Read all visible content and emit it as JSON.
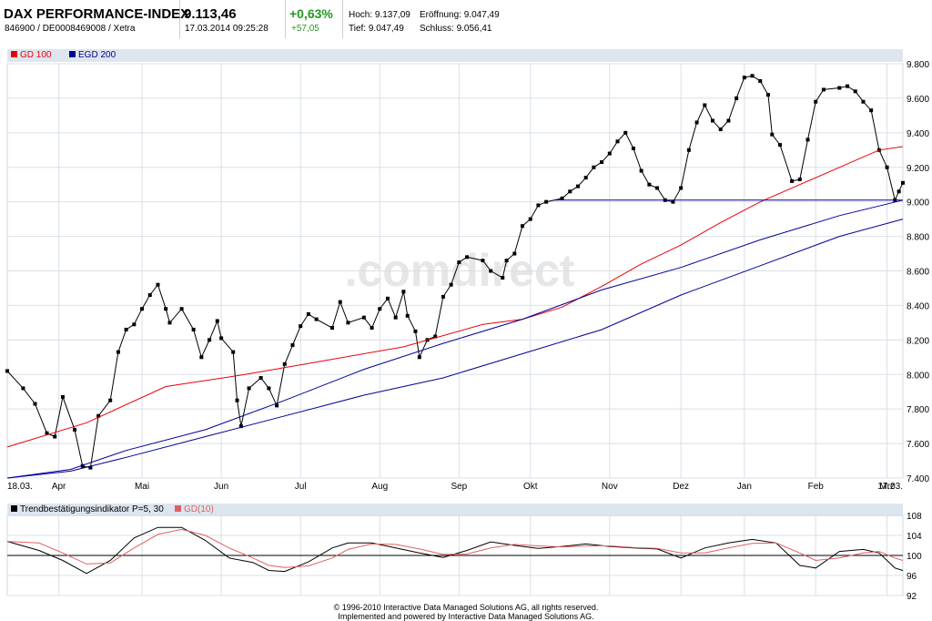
{
  "header": {
    "title": "DAX PERFORMANCE-INDEX",
    "subtitle": "846900 / DE0008469008 / Xetra",
    "price": "9.113,46",
    "datetime": "17.03.2014 09:25:28",
    "change_pct": "+0,63%",
    "change_abs": "+57,05",
    "hoch": "Hoch: 9.137,09",
    "eroeffnung": "Eröffnung: 9.047,49",
    "tief": "Tief: 9.047,49",
    "schluss": "Schluss: 9.056,41"
  },
  "colors": {
    "red": "#e8000b",
    "blue": "#000096",
    "price": "#000000",
    "osc_red": "#e06060"
  },
  "watermark": ".comdirect",
  "chart_data": [
    {
      "type": "line",
      "title": "DAX PERFORMANCE-INDEX",
      "legend": [
        "GD 100",
        "EGD 200"
      ],
      "ylim": [
        7400,
        9800
      ],
      "y_ticks": [
        "9.800",
        "9.600",
        "9.400",
        "9.200",
        "9.000",
        "8.800",
        "8.600",
        "8.400",
        "8.200",
        "8.000",
        "7.800",
        "7.600",
        "7.400"
      ],
      "y_tick_values": [
        9800,
        9600,
        9400,
        9200,
        9000,
        8800,
        8600,
        8400,
        8200,
        8000,
        7800,
        7600,
        7400
      ],
      "x_tick_labels": [
        "18.03.",
        "Apr",
        "Mai",
        "Jun",
        "Jul",
        "Aug",
        "Sep",
        "Okt",
        "Nov",
        "Dez",
        "Jan",
        "Feb",
        "Mrz",
        "17.03."
      ],
      "x_tick_positions": [
        0,
        0.065,
        0.17,
        0.27,
        0.37,
        0.47,
        0.57,
        0.66,
        0.76,
        0.85,
        0.93,
        1.02,
        1.11,
        1.13
      ],
      "x_range": [
        0,
        1.13
      ],
      "series": [
        {
          "name": "DAX",
          "style": "line+square-markers",
          "color": "#000000",
          "points": [
            [
              0.0,
              8020
            ],
            [
              0.02,
              7920
            ],
            [
              0.035,
              7830
            ],
            [
              0.05,
              7660
            ],
            [
              0.06,
              7640
            ],
            [
              0.07,
              7870
            ],
            [
              0.085,
              7680
            ],
            [
              0.095,
              7470
            ],
            [
              0.105,
              7460
            ],
            [
              0.115,
              7760
            ],
            [
              0.13,
              7850
            ],
            [
              0.14,
              8130
            ],
            [
              0.15,
              8260
            ],
            [
              0.16,
              8290
            ],
            [
              0.17,
              8380
            ],
            [
              0.18,
              8460
            ],
            [
              0.19,
              8520
            ],
            [
              0.2,
              8380
            ],
            [
              0.205,
              8300
            ],
            [
              0.22,
              8380
            ],
            [
              0.235,
              8260
            ],
            [
              0.245,
              8100
            ],
            [
              0.255,
              8200
            ],
            [
              0.265,
              8310
            ],
            [
              0.27,
              8210
            ],
            [
              0.285,
              8130
            ],
            [
              0.29,
              7850
            ],
            [
              0.295,
              7700
            ],
            [
              0.305,
              7920
            ],
            [
              0.32,
              7980
            ],
            [
              0.33,
              7920
            ],
            [
              0.34,
              7820
            ],
            [
              0.35,
              8060
            ],
            [
              0.36,
              8170
            ],
            [
              0.37,
              8280
            ],
            [
              0.38,
              8350
            ],
            [
              0.39,
              8320
            ],
            [
              0.41,
              8270
            ],
            [
              0.42,
              8420
            ],
            [
              0.43,
              8300
            ],
            [
              0.45,
              8330
            ],
            [
              0.46,
              8270
            ],
            [
              0.47,
              8380
            ],
            [
              0.48,
              8440
            ],
            [
              0.49,
              8330
            ],
            [
              0.5,
              8480
            ],
            [
              0.505,
              8340
            ],
            [
              0.515,
              8250
            ],
            [
              0.52,
              8100
            ],
            [
              0.53,
              8200
            ],
            [
              0.54,
              8220
            ],
            [
              0.55,
              8450
            ],
            [
              0.56,
              8520
            ],
            [
              0.57,
              8650
            ],
            [
              0.58,
              8680
            ],
            [
              0.6,
              8660
            ],
            [
              0.61,
              8600
            ],
            [
              0.625,
              8560
            ],
            [
              0.63,
              8660
            ],
            [
              0.64,
              8700
            ],
            [
              0.65,
              8860
            ],
            [
              0.66,
              8900
            ],
            [
              0.67,
              8980
            ],
            [
              0.68,
              9000
            ],
            [
              0.7,
              9020
            ],
            [
              0.71,
              9060
            ],
            [
              0.72,
              9090
            ],
            [
              0.73,
              9140
            ],
            [
              0.74,
              9200
            ],
            [
              0.75,
              9230
            ],
            [
              0.76,
              9280
            ],
            [
              0.77,
              9350
            ],
            [
              0.78,
              9400
            ],
            [
              0.79,
              9310
            ],
            [
              0.8,
              9180
            ],
            [
              0.81,
              9100
            ],
            [
              0.82,
              9080
            ],
            [
              0.83,
              9010
            ],
            [
              0.84,
              9000
            ],
            [
              0.85,
              9080
            ],
            [
              0.86,
              9300
            ],
            [
              0.87,
              9460
            ],
            [
              0.88,
              9560
            ],
            [
              0.89,
              9470
            ],
            [
              0.9,
              9420
            ],
            [
              0.91,
              9470
            ],
            [
              0.92,
              9600
            ],
            [
              0.93,
              9720
            ],
            [
              0.94,
              9730
            ],
            [
              0.95,
              9700
            ],
            [
              0.96,
              9620
            ],
            [
              0.965,
              9390
            ],
            [
              0.975,
              9330
            ],
            [
              0.99,
              9120
            ],
            [
              1.0,
              9130
            ],
            [
              1.01,
              9360
            ],
            [
              1.02,
              9580
            ],
            [
              1.03,
              9650
            ],
            [
              1.05,
              9660
            ],
            [
              1.06,
              9670
            ],
            [
              1.07,
              9640
            ],
            [
              1.08,
              9580
            ],
            [
              1.09,
              9530
            ],
            [
              1.1,
              9300
            ],
            [
              1.11,
              9200
            ],
            [
              1.12,
              9010
            ],
            [
              1.125,
              9060
            ],
            [
              1.13,
              9110
            ]
          ]
        },
        {
          "name": "GD 100",
          "color": "#e8000b",
          "points": [
            [
              0,
              7580
            ],
            [
              0.1,
              7720
            ],
            [
              0.2,
              7930
            ],
            [
              0.3,
              8000
            ],
            [
              0.4,
              8080
            ],
            [
              0.5,
              8160
            ],
            [
              0.6,
              8290
            ],
            [
              0.65,
              8320
            ],
            [
              0.7,
              8390
            ],
            [
              0.75,
              8510
            ],
            [
              0.8,
              8640
            ],
            [
              0.85,
              8750
            ],
            [
              0.9,
              8880
            ],
            [
              0.95,
              9000
            ],
            [
              1.0,
              9100
            ],
            [
              1.05,
              9200
            ],
            [
              1.1,
              9300
            ],
            [
              1.13,
              9320
            ]
          ]
        },
        {
          "name": "EGD 200",
          "color": "#000096",
          "points": [
            [
              0,
              7400
            ],
            [
              0.08,
              7450
            ],
            [
              0.15,
              7560
            ],
            [
              0.25,
              7680
            ],
            [
              0.35,
              7850
            ],
            [
              0.45,
              8030
            ],
            [
              0.55,
              8180
            ],
            [
              0.65,
              8320
            ],
            [
              0.75,
              8490
            ],
            [
              0.85,
              8620
            ],
            [
              0.95,
              8780
            ],
            [
              1.05,
              8920
            ],
            [
              1.13,
              9010
            ]
          ]
        },
        {
          "name": "EGD 200 lower",
          "color": "#000096",
          "points": [
            [
              0,
              7400
            ],
            [
              0.08,
              7440
            ],
            [
              0.15,
              7520
            ],
            [
              0.25,
              7640
            ],
            [
              0.35,
              7760
            ],
            [
              0.45,
              7880
            ],
            [
              0.55,
              7980
            ],
            [
              0.65,
              8120
            ],
            [
              0.75,
              8260
            ],
            [
              0.85,
              8460
            ],
            [
              0.95,
              8630
            ],
            [
              1.05,
              8800
            ],
            [
              1.13,
              8900
            ]
          ]
        },
        {
          "name": "Support",
          "color": "#000096",
          "points": [
            [
              0.69,
              9010
            ],
            [
              1.13,
              9010
            ]
          ]
        }
      ]
    },
    {
      "type": "line",
      "title": "Trendbestätigungsindikator P=5, 30",
      "legend": [
        "Trendbestätigungsindikator P=5, 30",
        "GD(10)"
      ],
      "ylim": [
        92,
        108
      ],
      "y_ticks": [
        "108",
        "104",
        "100",
        "96",
        "92"
      ],
      "y_tick_values": [
        108,
        104,
        100,
        96,
        92
      ],
      "reference_line": 100,
      "x_range": [
        0,
        1.13
      ],
      "series": [
        {
          "name": "Trendbestätigungsindikator P=5, 30",
          "color": "#000000",
          "points": [
            [
              0,
              102.8
            ],
            [
              0.04,
              101
            ],
            [
              0.07,
              99
            ],
            [
              0.1,
              96.4
            ],
            [
              0.13,
              99
            ],
            [
              0.16,
              103.5
            ],
            [
              0.19,
              105.6
            ],
            [
              0.22,
              105.6
            ],
            [
              0.25,
              103
            ],
            [
              0.28,
              99.5
            ],
            [
              0.31,
              98.6
            ],
            [
              0.33,
              97
            ],
            [
              0.35,
              96.8
            ],
            [
              0.38,
              98.7
            ],
            [
              0.41,
              101.5
            ],
            [
              0.43,
              102.5
            ],
            [
              0.46,
              102.5
            ],
            [
              0.49,
              101.5
            ],
            [
              0.52,
              100.5
            ],
            [
              0.55,
              99.6
            ],
            [
              0.58,
              101
            ],
            [
              0.61,
              102.7
            ],
            [
              0.64,
              102
            ],
            [
              0.67,
              101.4
            ],
            [
              0.7,
              101.8
            ],
            [
              0.73,
              102.3
            ],
            [
              0.76,
              101.8
            ],
            [
              0.79,
              101.5
            ],
            [
              0.82,
              101.3
            ],
            [
              0.85,
              99.5
            ],
            [
              0.88,
              101.5
            ],
            [
              0.91,
              102.5
            ],
            [
              0.94,
              103.2
            ],
            [
              0.97,
              102.5
            ],
            [
              1.0,
              98
            ],
            [
              1.02,
              97.5
            ],
            [
              1.05,
              100.8
            ],
            [
              1.08,
              101.2
            ],
            [
              1.1,
              100.5
            ],
            [
              1.12,
              97.5
            ],
            [
              1.13,
              97
            ]
          ]
        },
        {
          "name": "GD(10)",
          "color": "#e06060",
          "points": [
            [
              0,
              102.8
            ],
            [
              0.04,
              102.5
            ],
            [
              0.07,
              100.5
            ],
            [
              0.1,
              98.3
            ],
            [
              0.13,
              98.5
            ],
            [
              0.16,
              101.5
            ],
            [
              0.19,
              104.2
            ],
            [
              0.22,
              105.2
            ],
            [
              0.25,
              104
            ],
            [
              0.28,
              101.5
            ],
            [
              0.31,
              99.5
            ],
            [
              0.33,
              98
            ],
            [
              0.35,
              97.6
            ],
            [
              0.38,
              97.9
            ],
            [
              0.41,
              99.5
            ],
            [
              0.43,
              101.2
            ],
            [
              0.46,
              102.3
            ],
            [
              0.49,
              102.2
            ],
            [
              0.52,
              101.3
            ],
            [
              0.55,
              100.2
            ],
            [
              0.58,
              100.3
            ],
            [
              0.61,
              101.5
            ],
            [
              0.64,
              102.2
            ],
            [
              0.67,
              101.9
            ],
            [
              0.7,
              101.7
            ],
            [
              0.73,
              101.9
            ],
            [
              0.76,
              101.9
            ],
            [
              0.79,
              101.6
            ],
            [
              0.82,
              101.4
            ],
            [
              0.85,
              100.5
            ],
            [
              0.88,
              100.5
            ],
            [
              0.91,
              101.5
            ],
            [
              0.94,
              102.4
            ],
            [
              0.97,
              102.5
            ],
            [
              1.0,
              100.5
            ],
            [
              1.02,
              99
            ],
            [
              1.05,
              99.5
            ],
            [
              1.08,
              100.5
            ],
            [
              1.1,
              100.8
            ],
            [
              1.12,
              99.5
            ],
            [
              1.13,
              99
            ]
          ]
        }
      ]
    }
  ],
  "footer": {
    "line1": "© 1996-2010 Interactive Data Managed Solutions AG, all rights reserved.",
    "line2": "Implemented and powered by Interactive Data Managed Solutions AG."
  }
}
